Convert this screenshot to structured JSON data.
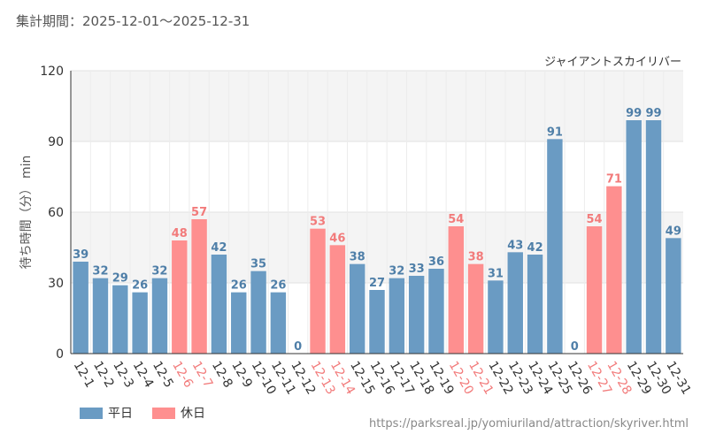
{
  "period_label": "集計期間：2025-12-01〜2025-12-31",
  "source_url": "https://parksreal.jp/yomiuriland/attraction/skyriver.html",
  "legend": [
    {
      "label": "平日",
      "color": "#6a9bc3"
    },
    {
      "label": "休日",
      "color": "#fe8f8f"
    }
  ],
  "chart_data": {
    "type": "bar",
    "title": "ジャイアントスカイリバー",
    "xlabel": "",
    "ylabel": "待ち時間（分） min",
    "ylim": [
      0,
      120
    ],
    "yticks": [
      0,
      30,
      60,
      90,
      120
    ],
    "categories": [
      "12-1",
      "12-2",
      "12-3",
      "12-4",
      "12-5",
      "12-6",
      "12-7",
      "12-8",
      "12-9",
      "12-10",
      "12-11",
      "12-12",
      "12-13",
      "12-14",
      "12-15",
      "12-16",
      "12-17",
      "12-18",
      "12-19",
      "12-20",
      "12-21",
      "12-22",
      "12-23",
      "12-24",
      "12-25",
      "12-26",
      "12-27",
      "12-28",
      "12-29",
      "12-30",
      "12-31"
    ],
    "values": [
      39,
      32,
      29,
      26,
      32,
      48,
      57,
      42,
      26,
      35,
      26,
      0,
      53,
      46,
      38,
      27,
      32,
      33,
      36,
      54,
      38,
      31,
      43,
      42,
      91,
      0,
      54,
      71,
      99,
      99,
      49
    ],
    "day_type": [
      "平日",
      "平日",
      "平日",
      "平日",
      "平日",
      "休日",
      "休日",
      "平日",
      "平日",
      "平日",
      "平日",
      "平日",
      "休日",
      "休日",
      "平日",
      "平日",
      "平日",
      "平日",
      "平日",
      "休日",
      "休日",
      "平日",
      "平日",
      "平日",
      "平日",
      "平日",
      "休日",
      "休日",
      "平日",
      "平日",
      "平日"
    ],
    "colors": {
      "平日": "#6a9bc3",
      "休日": "#fe8f8f"
    },
    "label_colors": {
      "平日": "#4f7fa8",
      "休日": "#f27b7b"
    }
  }
}
